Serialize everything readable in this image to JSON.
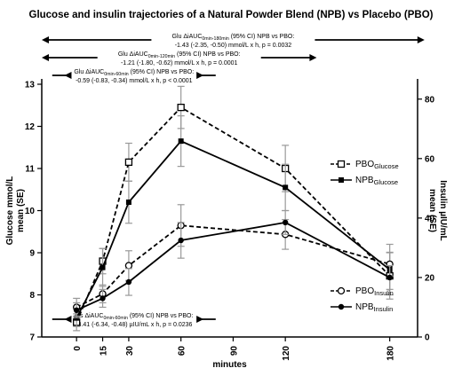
{
  "chart_data": {
    "type": "line",
    "title": "Glucose and insulin trajectories of a Natural Powder Blend (NPB) vs Placebo (PBO)",
    "xlabel": "minutes",
    "ylabel_left": "Glucose mmol/L\nmean (SE)",
    "ylabel_right": "Insulin µIU/mL\nmean (SE)",
    "x": [
      0,
      15,
      30,
      60,
      120,
      180
    ],
    "x_ticks": [
      0,
      15,
      30,
      60,
      90,
      120,
      180
    ],
    "y_left_ticks": [
      7,
      8,
      9,
      10,
      11,
      12,
      13
    ],
    "y_right_ticks": [
      0,
      20,
      40,
      60,
      80
    ],
    "ylim_left": [
      7,
      13
    ],
    "ylim_right": [
      0,
      85
    ],
    "grid": false,
    "legend_position": "right",
    "series": [
      {
        "name": "PBO",
        "name_sub": "Glucose",
        "axis": "left",
        "style": "dashed",
        "marker": "open-square",
        "values": [
          7.35,
          8.8,
          11.15,
          12.45,
          11.0,
          8.45
        ],
        "errors": [
          0.2,
          0.3,
          0.45,
          0.5,
          0.55,
          0.55
        ]
      },
      {
        "name": "NPB",
        "name_sub": "Glucose",
        "axis": "left",
        "style": "solid",
        "marker": "filled-square",
        "values": [
          7.45,
          8.65,
          10.2,
          11.65,
          10.55,
          8.6
        ],
        "errors": [
          0.2,
          0.45,
          0.5,
          0.6,
          0.55,
          0.6
        ]
      },
      {
        "name": "PBO",
        "name_sub": "Insulin",
        "axis": "right",
        "style": "dashed",
        "marker": "open-circle",
        "values": [
          10,
          14.5,
          24,
          37.5,
          34.5,
          24.5
        ],
        "errors": [
          3,
          3,
          5,
          7,
          5,
          4
        ]
      },
      {
        "name": "NPB",
        "name_sub": "Insulin",
        "axis": "right",
        "style": "solid",
        "marker": "filled-circle",
        "values": [
          9,
          13,
          18.5,
          32.5,
          38.5,
          20
        ],
        "errors": [
          2.5,
          3,
          4.5,
          6,
          4,
          4
        ]
      }
    ],
    "annotations": [
      {
        "line1": "Glu ΔiAUC",
        "sub": "0min-180min",
        "line1_tail": "(95% CI) NPB vs PBO:",
        "line2": "-1.43 (-2.35, -0.50) mmol/L x h, p = 0.0032",
        "x_from": -20,
        "x_to": 200
      },
      {
        "line1": "Glu ΔiAUC",
        "sub": "0min-120min",
        "line1_tail": "(95% CI) NPB vs PBO:",
        "line2": "-1.21 (-1.80, -0.62) mmol/L x h, p = 0.0001",
        "x_from": -20,
        "x_to": 138
      },
      {
        "line1": "Glu ΔiAUC",
        "sub": "0min-60min",
        "line1_tail": "(95% CI) NPB vs PBO:",
        "line2": "-0.59 (-0.83, -0.34) mmol/L x h, p < 0.0001",
        "x_from": -7,
        "x_to": 73
      },
      {
        "line1": "Ins ΔiAUC",
        "sub": "0min-60min",
        "line1_tail": "(95% CI) NPB vs PBO:",
        "line2": "-3.41 (-6.34, -0.48) µIU/mL x h, p = 0.0236",
        "x_from": -7,
        "x_to": 73
      }
    ]
  }
}
